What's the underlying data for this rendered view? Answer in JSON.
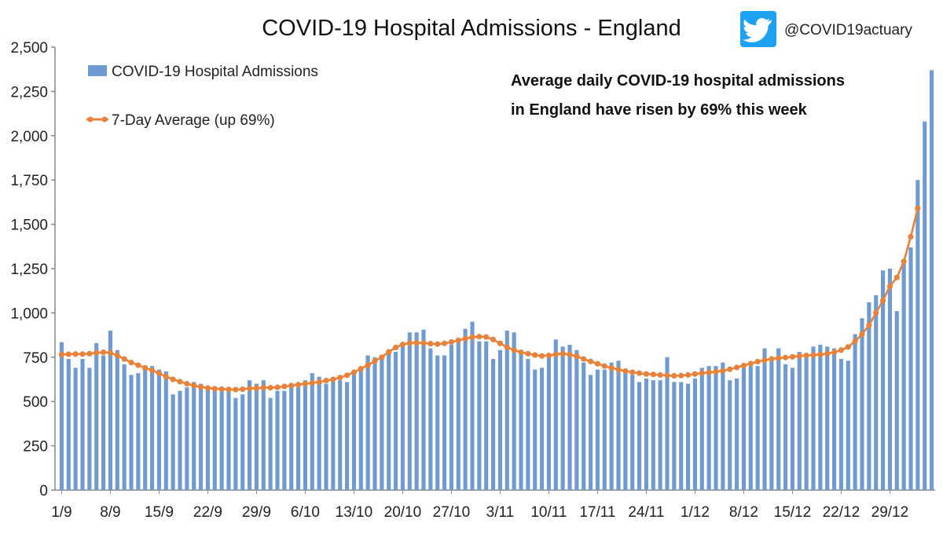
{
  "handle": "@COVID19actuary",
  "icon": "twitter-bird-icon",
  "colors": {
    "bar": "#6f9bd2",
    "line": "#e8823a",
    "axis": "#888888",
    "text": "#222222",
    "twitter": "#1da1f2"
  },
  "chart_data": {
    "type": "bar",
    "title": "COVID-19 Hospital Admissions - England",
    "annotation": [
      "Average daily COVID-19 hospital admissions",
      "in England have risen by 69% this week"
    ],
    "legend": {
      "placement": "top-left",
      "entries": [
        "COVID-19 Hospital Admissions",
        "7-Day Average (up 69%)"
      ]
    },
    "ylim": [
      0,
      2500
    ],
    "yticks": [
      0,
      250,
      500,
      750,
      1000,
      1250,
      1500,
      1750,
      2000,
      2250,
      2500
    ],
    "ytick_labels": [
      "0",
      "250",
      "500",
      "750",
      "1,000",
      "1,250",
      "1,500",
      "1,750",
      "2,000",
      "2,250",
      "2,500"
    ],
    "grid": false,
    "xtick_labels": [
      "1/9",
      "8/9",
      "15/9",
      "22/9",
      "29/9",
      "6/10",
      "13/10",
      "20/10",
      "27/10",
      "3/11",
      "10/11",
      "17/11",
      "24/11",
      "1/12",
      "8/12",
      "15/12",
      "22/12",
      "29/12"
    ],
    "xtick_every_days": 7,
    "series": [
      {
        "name": "COVID-19 Hospital Admissions",
        "kind": "bar",
        "values": [
          835,
          740,
          690,
          740,
          690,
          830,
          760,
          900,
          790,
          710,
          650,
          660,
          690,
          700,
          680,
          670,
          540,
          560,
          580,
          610,
          600,
          580,
          560,
          570,
          560,
          520,
          540,
          620,
          600,
          620,
          520,
          560,
          560,
          600,
          580,
          620,
          660,
          640,
          600,
          620,
          620,
          610,
          660,
          690,
          760,
          750,
          740,
          780,
          780,
          820,
          890,
          890,
          905,
          800,
          760,
          760,
          820,
          840,
          910,
          950,
          840,
          840,
          740,
          790,
          900,
          890,
          780,
          740,
          680,
          690,
          750,
          850,
          810,
          820,
          790,
          720,
          650,
          680,
          680,
          720,
          730,
          670,
          650,
          610,
          630,
          620,
          620,
          750,
          610,
          610,
          600,
          630,
          690,
          700,
          700,
          720,
          620,
          630,
          690,
          700,
          700,
          800,
          730,
          800,
          710,
          690,
          780,
          760,
          810,
          820,
          810,
          800,
          740,
          730,
          880,
          970,
          1060,
          1100,
          1240,
          1250,
          1010,
          1280,
          1370,
          1750,
          2080,
          2370
        ]
      },
      {
        "name": "7-Day Average (up 69%)",
        "kind": "line",
        "values": [
          765,
          767,
          768,
          768,
          770,
          775,
          778,
          775,
          760,
          740,
          720,
          705,
          690,
          675,
          660,
          640,
          625,
          612,
          600,
          590,
          582,
          576,
          572,
          570,
          568,
          567,
          569,
          574,
          575,
          578,
          578,
          580,
          585,
          590,
          595,
          600,
          605,
          610,
          618,
          625,
          635,
          648,
          665,
          685,
          705,
          728,
          750,
          780,
          805,
          822,
          830,
          832,
          830,
          826,
          824,
          828,
          836,
          845,
          855,
          863,
          866,
          864,
          850,
          828,
          806,
          790,
          778,
          770,
          762,
          757,
          760,
          766,
          770,
          765,
          755,
          740,
          726,
          713,
          700,
          690,
          680,
          672,
          665,
          660,
          655,
          653,
          650,
          647,
          645,
          646,
          650,
          655,
          660,
          664,
          668,
          673,
          682,
          692,
          703,
          714,
          725,
          733,
          740,
          745,
          748,
          752,
          757,
          760,
          762,
          765,
          770,
          778,
          790,
          808,
          840,
          880,
          930,
          1000,
          1070,
          1150,
          1200,
          1290,
          1430,
          1590
        ]
      }
    ]
  }
}
